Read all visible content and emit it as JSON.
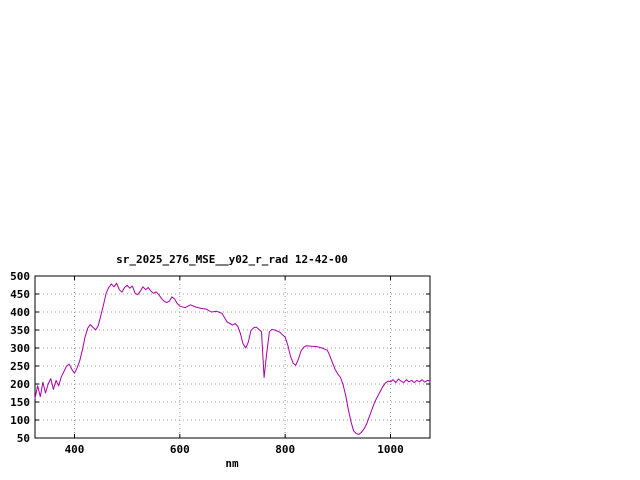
{
  "chart_data": {
    "type": "line",
    "title": "sr_2025_276_MSE__y02_r_rad 12-42-00",
    "xlabel": "nm",
    "ylabel": "",
    "xlim": [
      325,
      1075
    ],
    "ylim": [
      50,
      500
    ],
    "xticks": [
      400,
      600,
      800,
      1000
    ],
    "yticks": [
      50,
      100,
      150,
      200,
      250,
      300,
      350,
      400,
      450,
      500
    ],
    "grid": true,
    "grid_style": "dotted",
    "legend": "none",
    "line_color": "#aa00aa",
    "axis_color": "#000000",
    "grid_color": "#999999",
    "x": [
      325,
      330,
      335,
      340,
      345,
      350,
      355,
      360,
      365,
      370,
      375,
      380,
      385,
      390,
      395,
      400,
      405,
      410,
      415,
      420,
      425,
      430,
      435,
      440,
      445,
      450,
      455,
      460,
      465,
      470,
      475,
      480,
      485,
      490,
      495,
      500,
      505,
      510,
      515,
      520,
      525,
      530,
      535,
      540,
      545,
      550,
      555,
      560,
      565,
      570,
      575,
      580,
      585,
      590,
      595,
      600,
      610,
      620,
      630,
      640,
      650,
      660,
      670,
      680,
      690,
      700,
      705,
      710,
      715,
      720,
      725,
      730,
      735,
      740,
      745,
      750,
      755,
      760,
      765,
      770,
      775,
      780,
      790,
      800,
      805,
      810,
      815,
      820,
      825,
      830,
      835,
      840,
      850,
      860,
      870,
      880,
      885,
      890,
      895,
      900,
      905,
      910,
      915,
      920,
      925,
      930,
      935,
      940,
      945,
      950,
      955,
      960,
      965,
      970,
      975,
      980,
      985,
      990,
      995,
      1000,
      1005,
      1010,
      1015,
      1020,
      1025,
      1030,
      1035,
      1040,
      1045,
      1050,
      1055,
      1060,
      1065,
      1070,
      1075
    ],
    "y": [
      160,
      195,
      165,
      205,
      175,
      200,
      215,
      185,
      210,
      195,
      220,
      235,
      250,
      255,
      240,
      230,
      245,
      265,
      295,
      330,
      355,
      365,
      358,
      350,
      362,
      390,
      420,
      452,
      468,
      478,
      470,
      480,
      462,
      455,
      468,
      474,
      466,
      472,
      452,
      448,
      458,
      470,
      462,
      468,
      458,
      452,
      456,
      448,
      438,
      430,
      426,
      430,
      442,
      436,
      424,
      416,
      412,
      420,
      414,
      410,
      408,
      400,
      402,
      396,
      372,
      364,
      368,
      360,
      340,
      312,
      300,
      316,
      348,
      356,
      358,
      352,
      345,
      218,
      285,
      345,
      352,
      350,
      344,
      330,
      308,
      278,
      258,
      252,
      268,
      292,
      302,
      306,
      305,
      304,
      300,
      294,
      278,
      258,
      240,
      228,
      218,
      198,
      168,
      128,
      95,
      70,
      62,
      60,
      66,
      76,
      90,
      110,
      130,
      150,
      164,
      178,
      192,
      202,
      208,
      206,
      212,
      204,
      214,
      208,
      204,
      212,
      206,
      210,
      204,
      210,
      206,
      212,
      205,
      210,
      208
    ]
  }
}
